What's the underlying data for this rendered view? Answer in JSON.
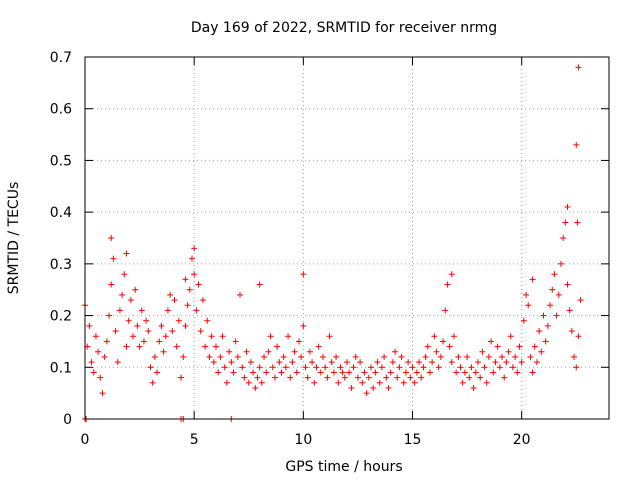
{
  "chart_data": {
    "type": "scatter",
    "title": "Day 169 of 2022, SRMTID for receiver nrmg",
    "xlabel": "GPS time / hours",
    "ylabel": "SRMTID / TECUs",
    "xlim": [
      0,
      24
    ],
    "ylim": [
      0,
      0.7
    ],
    "xticks": [
      0,
      5,
      10,
      15,
      20
    ],
    "xtick_labels": [
      "0",
      "5",
      "10",
      "15",
      "20"
    ],
    "yticks": [
      0,
      0.1,
      0.2,
      0.3,
      0.4,
      0.5,
      0.6,
      0.7
    ],
    "ytick_labels": [
      "0",
      "0.1",
      "0.2",
      "0.3",
      "0.4",
      "0.5",
      "0.6",
      "0.7"
    ],
    "grid": true,
    "marker": "plus",
    "color": "#ff0000",
    "series": [
      {
        "name": "SRMTID",
        "x": [
          0.0,
          0.1,
          0.2,
          0.3,
          0.4,
          0.5,
          0.6,
          0.7,
          0.8,
          0.9,
          1.0,
          1.1,
          1.2,
          1.3,
          1.4,
          1.5,
          1.6,
          1.7,
          1.8,
          1.9,
          2.0,
          2.1,
          2.2,
          2.3,
          2.4,
          2.5,
          2.6,
          2.7,
          2.8,
          2.9,
          3.0,
          3.1,
          3.2,
          3.3,
          3.4,
          3.5,
          3.6,
          3.7,
          3.8,
          3.9,
          4.0,
          4.1,
          4.2,
          4.3,
          4.4,
          4.5,
          4.6,
          4.7,
          4.8,
          4.9,
          5.0,
          5.1,
          5.2,
          5.3,
          5.4,
          5.5,
          5.6,
          5.7,
          5.8,
          5.9,
          6.0,
          6.1,
          6.2,
          6.3,
          6.4,
          6.5,
          6.6,
          6.7,
          6.8,
          6.9,
          7.0,
          7.1,
          7.2,
          7.3,
          7.4,
          7.5,
          7.6,
          7.7,
          7.8,
          7.9,
          8.0,
          8.1,
          8.2,
          8.3,
          8.4,
          8.5,
          8.6,
          8.7,
          8.8,
          8.9,
          9.0,
          9.1,
          9.2,
          9.3,
          9.4,
          9.5,
          9.6,
          9.7,
          9.8,
          9.9,
          10.0,
          10.1,
          10.2,
          10.3,
          10.4,
          10.5,
          10.6,
          10.7,
          10.8,
          10.9,
          11.0,
          11.1,
          11.2,
          11.3,
          11.4,
          11.5,
          11.6,
          11.7,
          11.8,
          11.9,
          12.0,
          12.1,
          12.2,
          12.3,
          12.4,
          12.5,
          12.6,
          12.7,
          12.8,
          12.9,
          13.0,
          13.1,
          13.2,
          13.3,
          13.4,
          13.5,
          13.6,
          13.7,
          13.8,
          13.9,
          14.0,
          14.1,
          14.2,
          14.3,
          14.4,
          14.5,
          14.6,
          14.7,
          14.8,
          14.9,
          15.0,
          15.1,
          15.2,
          15.3,
          15.4,
          15.5,
          15.6,
          15.7,
          15.8,
          15.9,
          16.0,
          16.1,
          16.2,
          16.3,
          16.4,
          16.5,
          16.6,
          16.7,
          16.8,
          16.9,
          17.0,
          17.1,
          17.2,
          17.3,
          17.4,
          17.5,
          17.6,
          17.7,
          17.8,
          17.9,
          18.0,
          18.1,
          18.2,
          18.3,
          18.4,
          18.5,
          18.6,
          18.7,
          18.8,
          18.9,
          19.0,
          19.1,
          19.2,
          19.3,
          19.4,
          19.5,
          19.6,
          19.7,
          19.8,
          19.9,
          20.0,
          20.1,
          20.2,
          20.3,
          20.4,
          20.5,
          20.6,
          20.7,
          20.8,
          20.9,
          21.0,
          21.1,
          21.2,
          21.3,
          21.4,
          21.5,
          21.6,
          21.7,
          21.8,
          21.9,
          22.0,
          22.1,
          22.2,
          22.3,
          22.4,
          22.5,
          22.6,
          22.7,
          0.0,
          0.05,
          4.4,
          4.5,
          6.7,
          1.2,
          1.9,
          4.6,
          5.0,
          8.0,
          10.0,
          16.8,
          20.5,
          22.1,
          22.5,
          22.6,
          22.55
        ],
        "y": [
          0.22,
          0.14,
          0.18,
          0.11,
          0.09,
          0.16,
          0.13,
          0.08,
          0.05,
          0.12,
          0.15,
          0.2,
          0.26,
          0.31,
          0.17,
          0.11,
          0.21,
          0.24,
          0.28,
          0.14,
          0.19,
          0.23,
          0.16,
          0.25,
          0.18,
          0.14,
          0.21,
          0.15,
          0.19,
          0.17,
          0.1,
          0.07,
          0.12,
          0.09,
          0.15,
          0.18,
          0.13,
          0.16,
          0.21,
          0.24,
          0.17,
          0.23,
          0.14,
          0.19,
          0.08,
          0.12,
          0.18,
          0.22,
          0.25,
          0.31,
          0.28,
          0.21,
          0.26,
          0.17,
          0.23,
          0.14,
          0.19,
          0.12,
          0.16,
          0.11,
          0.14,
          0.09,
          0.12,
          0.16,
          0.1,
          0.07,
          0.13,
          0.11,
          0.09,
          0.15,
          0.12,
          0.24,
          0.1,
          0.08,
          0.13,
          0.07,
          0.11,
          0.09,
          0.06,
          0.08,
          0.1,
          0.07,
          0.12,
          0.09,
          0.13,
          0.16,
          0.1,
          0.08,
          0.14,
          0.11,
          0.09,
          0.12,
          0.1,
          0.16,
          0.08,
          0.11,
          0.13,
          0.09,
          0.15,
          0.12,
          0.18,
          0.1,
          0.08,
          0.13,
          0.11,
          0.07,
          0.1,
          0.14,
          0.09,
          0.12,
          0.1,
          0.08,
          0.16,
          0.11,
          0.09,
          0.12,
          0.07,
          0.1,
          0.09,
          0.08,
          0.11,
          0.09,
          0.06,
          0.1,
          0.12,
          0.08,
          0.11,
          0.07,
          0.09,
          0.05,
          0.08,
          0.1,
          0.06,
          0.09,
          0.11,
          0.07,
          0.1,
          0.12,
          0.08,
          0.06,
          0.09,
          0.11,
          0.13,
          0.08,
          0.1,
          0.12,
          0.07,
          0.09,
          0.11,
          0.08,
          0.1,
          0.07,
          0.09,
          0.11,
          0.08,
          0.1,
          0.12,
          0.14,
          0.09,
          0.11,
          0.16,
          0.13,
          0.1,
          0.12,
          0.15,
          0.21,
          0.26,
          0.14,
          0.11,
          0.16,
          0.09,
          0.12,
          0.1,
          0.07,
          0.09,
          0.12,
          0.08,
          0.1,
          0.06,
          0.09,
          0.11,
          0.08,
          0.13,
          0.1,
          0.07,
          0.12,
          0.15,
          0.09,
          0.11,
          0.14,
          0.1,
          0.12,
          0.08,
          0.11,
          0.13,
          0.16,
          0.1,
          0.12,
          0.09,
          0.14,
          0.11,
          0.19,
          0.24,
          0.22,
          0.12,
          0.09,
          0.14,
          0.11,
          0.17,
          0.13,
          0.2,
          0.15,
          0.18,
          0.22,
          0.25,
          0.28,
          0.2,
          0.24,
          0.3,
          0.35,
          0.38,
          0.26,
          0.21,
          0.17,
          0.12,
          0.1,
          0.16,
          0.23,
          0.0,
          0.0,
          0.0,
          0.0,
          0.0,
          0.35,
          0.32,
          0.27,
          0.33,
          0.26,
          0.28,
          0.28,
          0.27,
          0.41,
          0.53,
          0.68,
          0.38
        ]
      }
    ],
    "point_count_note": ""
  }
}
